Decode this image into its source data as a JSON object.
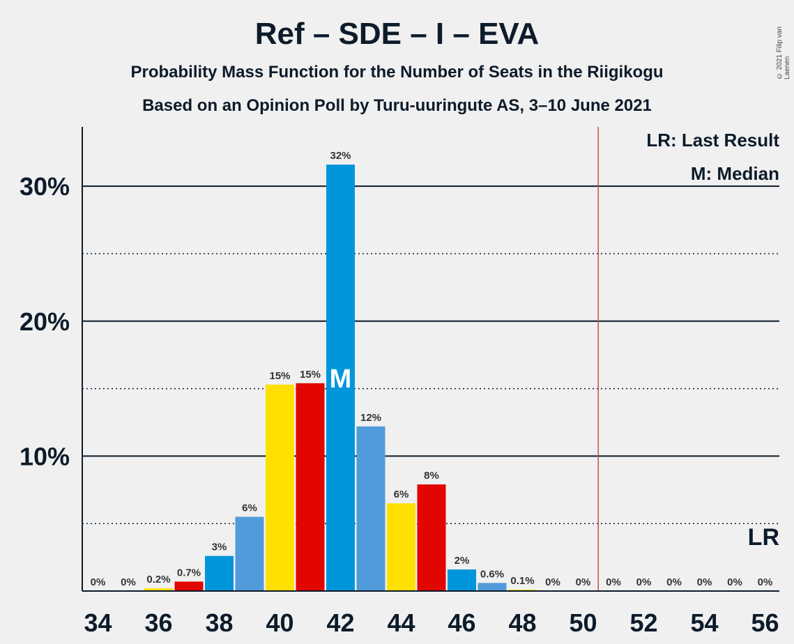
{
  "header": {
    "title": "Ref – SDE – I – EVA",
    "subtitle1": "Probability Mass Function for the Number of Seats in the Riigikogu",
    "subtitle2": "Based on an Opinion Poll by Turu-uuringute AS, 3–10 June 2021",
    "copyright": "© 2021 Filip van Laenen"
  },
  "legend": {
    "last_result": "LR: Last Result",
    "median": "M: Median"
  },
  "colors": {
    "ref_yellow": "#FFE000",
    "sde_red": "#E10600",
    "blue": "#0096DB",
    "light_blue": "#529BDB",
    "last_result_line": "#C0504D",
    "axis": "#0d1b2a"
  },
  "chart_data": {
    "type": "bar",
    "x": [
      34,
      35,
      36,
      37,
      38,
      39,
      40,
      41,
      42,
      43,
      44,
      45,
      46,
      47,
      48,
      49,
      50,
      51,
      52,
      53,
      54,
      55,
      56
    ],
    "values": [
      0,
      0,
      0.2,
      0.7,
      2.6,
      5.5,
      15.3,
      15.4,
      31.6,
      12.2,
      6.5,
      7.9,
      1.6,
      0.6,
      0.1,
      0,
      0,
      0,
      0,
      0,
      0,
      0,
      0
    ],
    "labels": [
      "0%",
      "0%",
      "0.2%",
      "0.7%",
      "3%",
      "6%",
      "15%",
      "15%",
      "32%",
      "12%",
      "6%",
      "8%",
      "2%",
      "0.6%",
      "0.1%",
      "0%",
      "0%",
      "0%",
      "0%",
      "0%",
      "0%",
      "0%",
      "0%"
    ],
    "bar_colors": [
      "#FFE000",
      "#E10600",
      "#FFE000",
      "#E10600",
      "#0096DB",
      "#529BDB",
      "#FFE000",
      "#E10600",
      "#0096DB",
      "#529BDB",
      "#FFE000",
      "#E10600",
      "#0096DB",
      "#529BDB",
      "#FFE000",
      "#E10600",
      "#0096DB",
      "#529BDB",
      "#FFE000",
      "#E10600",
      "#0096DB",
      "#529BDB",
      "#FFE000"
    ],
    "x_ticks": [
      "34",
      "36",
      "38",
      "40",
      "42",
      "44",
      "46",
      "48",
      "50",
      "52",
      "54",
      "56"
    ],
    "y_ticks": [
      "10%",
      "20%",
      "30%"
    ],
    "y_tick_values": [
      10,
      20,
      30
    ],
    "y_dotted_values": [
      5,
      15,
      25
    ],
    "ylim": [
      0,
      34.4
    ],
    "median_seat": 42,
    "median_label": "M",
    "last_result_seat": 50.5,
    "last_result_label": "LR",
    "grid": true,
    "legend_position": "top-right"
  }
}
